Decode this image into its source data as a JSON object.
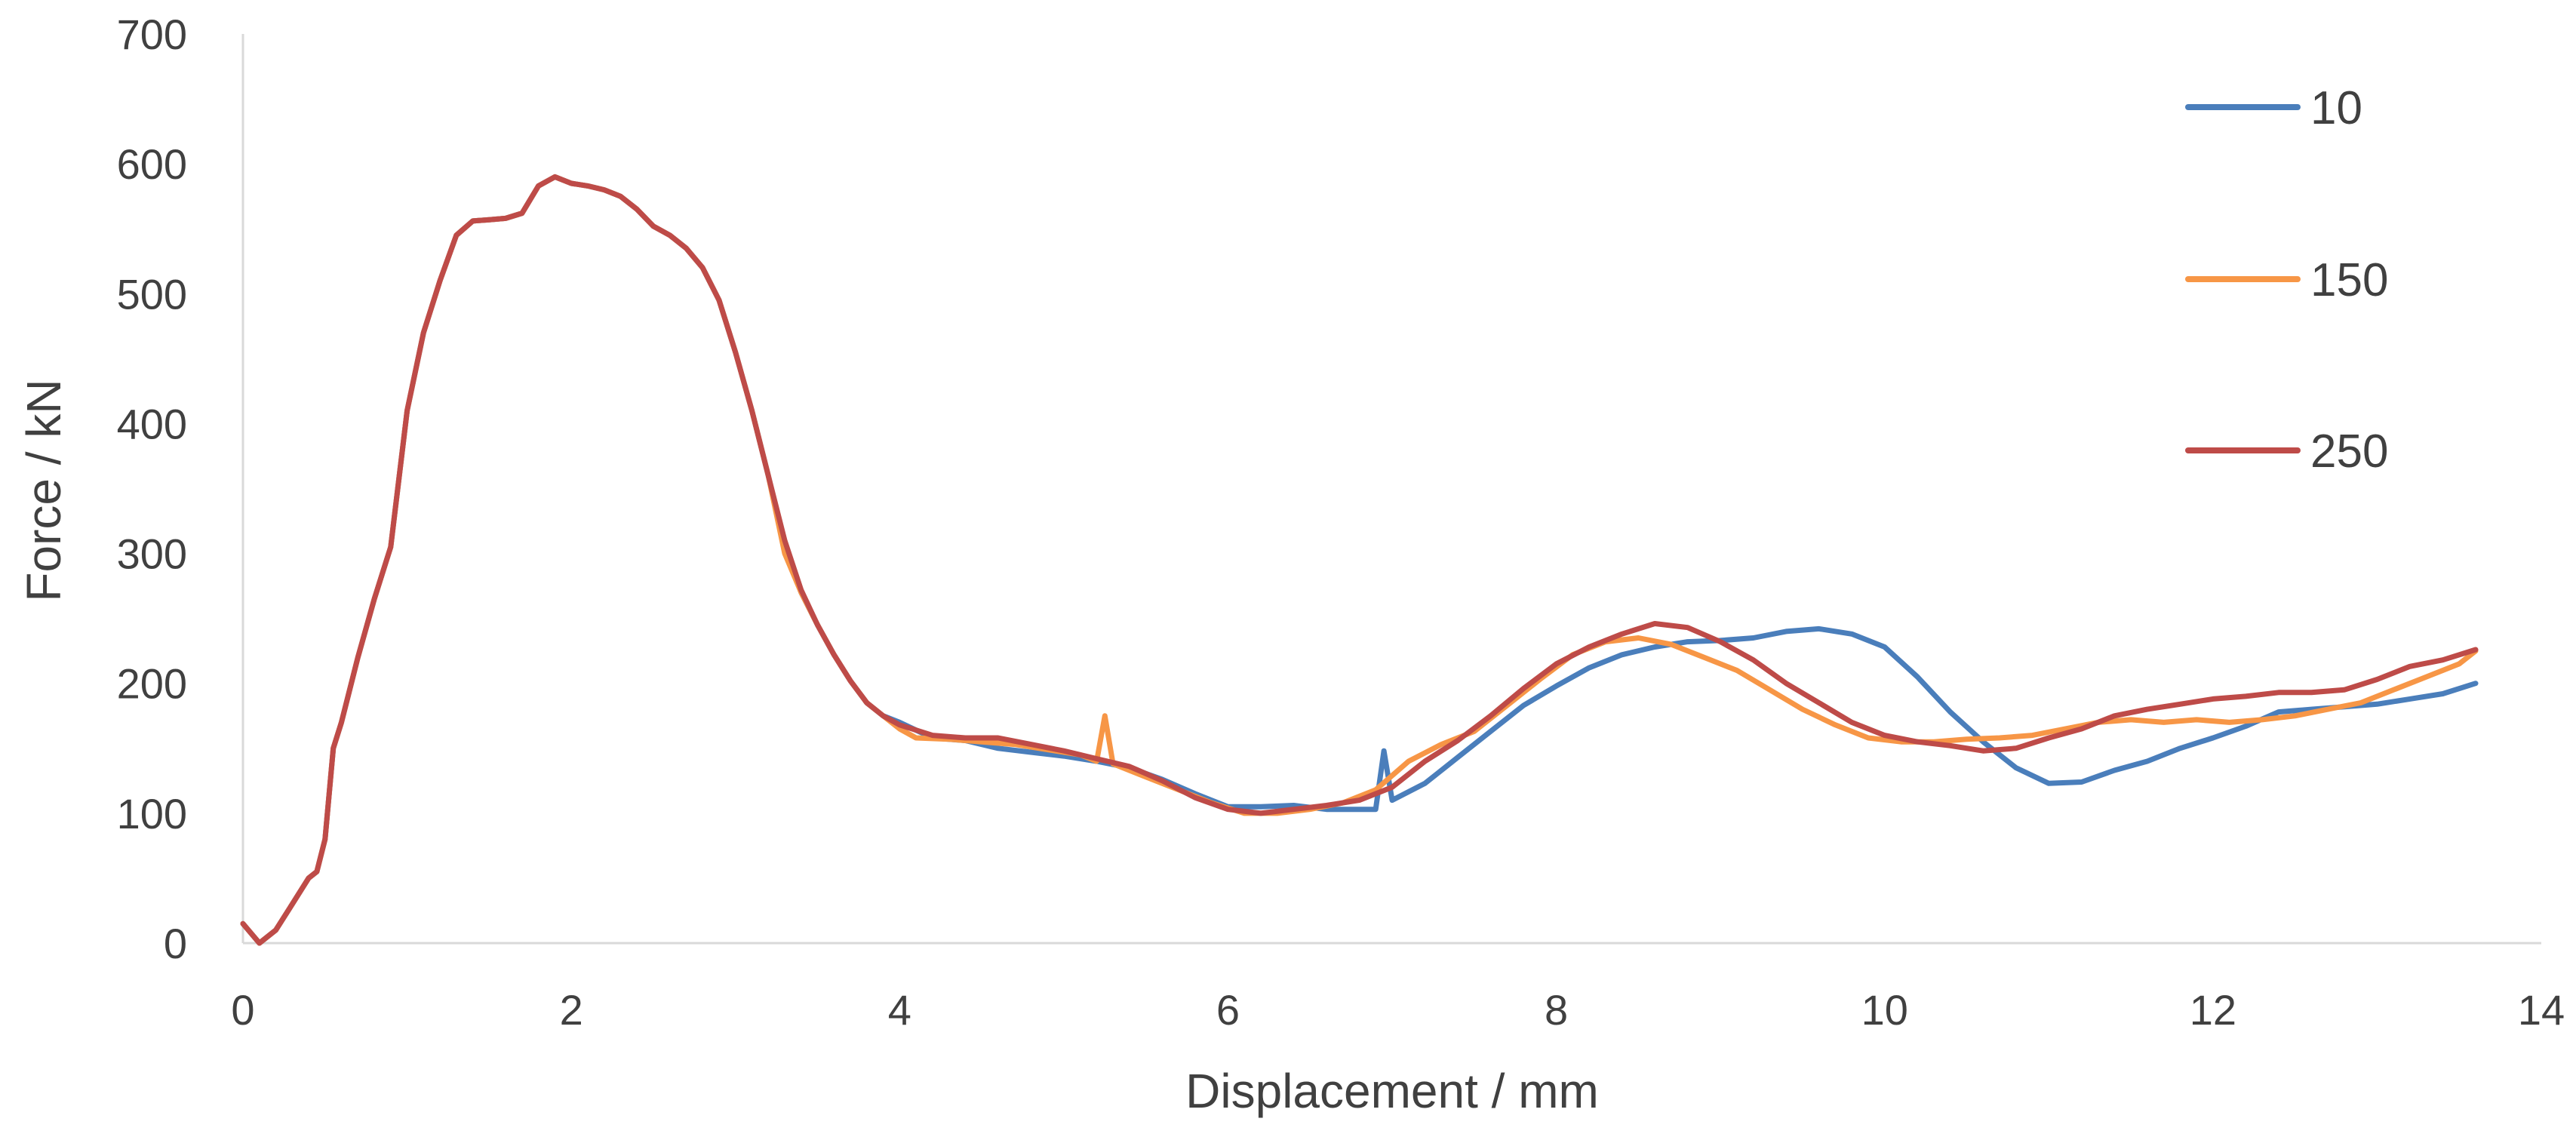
{
  "chart_data": {
    "type": "line",
    "title": "",
    "xlabel": "Displacement / mm",
    "ylabel": "Force / kN",
    "xlim": [
      0,
      14
    ],
    "ylim": [
      0,
      700
    ],
    "x_ticks": [
      "0",
      "2",
      "4",
      "6",
      "8",
      "10",
      "12",
      "14"
    ],
    "y_ticks": [
      "0",
      "100",
      "200",
      "300",
      "400",
      "500",
      "600",
      "700"
    ],
    "grid": false,
    "legend_position": "top-right",
    "series": [
      {
        "name": "10",
        "color": "#4a7ebb",
        "points": [
          [
            0,
            15
          ],
          [
            0.1,
            0
          ],
          [
            0.2,
            10
          ],
          [
            0.3,
            30
          ],
          [
            0.4,
            50
          ],
          [
            0.45,
            55
          ],
          [
            0.5,
            80
          ],
          [
            0.55,
            150
          ],
          [
            0.6,
            170
          ],
          [
            0.7,
            220
          ],
          [
            0.8,
            265
          ],
          [
            0.9,
            305
          ],
          [
            1.0,
            410
          ],
          [
            1.1,
            470
          ],
          [
            1.2,
            510
          ],
          [
            1.3,
            545
          ],
          [
            1.4,
            556
          ],
          [
            1.5,
            557
          ],
          [
            1.6,
            558
          ],
          [
            1.7,
            562
          ],
          [
            1.8,
            583
          ],
          [
            1.9,
            590
          ],
          [
            2.0,
            585
          ],
          [
            2.1,
            583
          ],
          [
            2.2,
            580
          ],
          [
            2.3,
            575
          ],
          [
            2.4,
            565
          ],
          [
            2.5,
            552
          ],
          [
            2.6,
            545
          ],
          [
            2.7,
            535
          ],
          [
            2.8,
            520
          ],
          [
            2.9,
            495
          ],
          [
            3.0,
            455
          ],
          [
            3.1,
            410
          ],
          [
            3.2,
            360
          ],
          [
            3.3,
            305
          ],
          [
            3.4,
            270
          ],
          [
            3.5,
            245
          ],
          [
            3.6,
            222
          ],
          [
            3.7,
            202
          ],
          [
            3.8,
            185
          ],
          [
            3.9,
            175
          ],
          [
            4.0,
            170
          ],
          [
            4.1,
            164
          ],
          [
            4.2,
            158
          ],
          [
            4.4,
            156
          ],
          [
            4.6,
            150
          ],
          [
            4.8,
            147
          ],
          [
            5.0,
            144
          ],
          [
            5.2,
            140
          ],
          [
            5.4,
            135
          ],
          [
            5.6,
            126
          ],
          [
            5.8,
            115
          ],
          [
            6.0,
            105
          ],
          [
            6.2,
            105
          ],
          [
            6.4,
            106
          ],
          [
            6.6,
            103
          ],
          [
            6.8,
            103
          ],
          [
            6.9,
            103
          ],
          [
            6.95,
            148
          ],
          [
            7.0,
            110
          ],
          [
            7.2,
            123
          ],
          [
            7.4,
            143
          ],
          [
            7.6,
            163
          ],
          [
            7.8,
            183
          ],
          [
            8.0,
            198
          ],
          [
            8.2,
            212
          ],
          [
            8.4,
            222
          ],
          [
            8.6,
            228
          ],
          [
            8.8,
            232
          ],
          [
            9.0,
            233
          ],
          [
            9.2,
            235
          ],
          [
            9.4,
            240
          ],
          [
            9.6,
            242
          ],
          [
            9.8,
            238
          ],
          [
            10.0,
            228
          ],
          [
            10.2,
            205
          ],
          [
            10.4,
            178
          ],
          [
            10.6,
            155
          ],
          [
            10.8,
            135
          ],
          [
            11.0,
            123
          ],
          [
            11.2,
            124
          ],
          [
            11.4,
            133
          ],
          [
            11.6,
            140
          ],
          [
            11.8,
            150
          ],
          [
            12.0,
            158
          ],
          [
            12.2,
            167
          ],
          [
            12.4,
            178
          ],
          [
            12.6,
            180
          ],
          [
            12.8,
            182
          ],
          [
            13.0,
            184
          ],
          [
            13.2,
            188
          ],
          [
            13.4,
            192
          ],
          [
            13.6,
            200
          ]
        ]
      },
      {
        "name": "150",
        "color": "#f79646",
        "points": [
          [
            0,
            15
          ],
          [
            0.1,
            0
          ],
          [
            0.2,
            10
          ],
          [
            0.3,
            30
          ],
          [
            0.4,
            50
          ],
          [
            0.45,
            55
          ],
          [
            0.5,
            80
          ],
          [
            0.55,
            150
          ],
          [
            0.6,
            170
          ],
          [
            0.7,
            220
          ],
          [
            0.8,
            265
          ],
          [
            0.9,
            305
          ],
          [
            1.0,
            410
          ],
          [
            1.1,
            470
          ],
          [
            1.2,
            510
          ],
          [
            1.3,
            545
          ],
          [
            1.4,
            556
          ],
          [
            1.5,
            557
          ],
          [
            1.6,
            558
          ],
          [
            1.7,
            562
          ],
          [
            1.8,
            583
          ],
          [
            1.9,
            590
          ],
          [
            2.0,
            585
          ],
          [
            2.1,
            583
          ],
          [
            2.2,
            580
          ],
          [
            2.3,
            575
          ],
          [
            2.4,
            565
          ],
          [
            2.5,
            552
          ],
          [
            2.6,
            545
          ],
          [
            2.7,
            535
          ],
          [
            2.8,
            520
          ],
          [
            2.9,
            495
          ],
          [
            3.0,
            455
          ],
          [
            3.1,
            410
          ],
          [
            3.2,
            360
          ],
          [
            3.3,
            300
          ],
          [
            3.4,
            270
          ],
          [
            3.5,
            245
          ],
          [
            3.6,
            222
          ],
          [
            3.7,
            202
          ],
          [
            3.8,
            185
          ],
          [
            3.9,
            175
          ],
          [
            4.0,
            165
          ],
          [
            4.1,
            158
          ],
          [
            4.3,
            157
          ],
          [
            4.5,
            155
          ],
          [
            4.7,
            153
          ],
          [
            4.9,
            149
          ],
          [
            5.1,
            145
          ],
          [
            5.2,
            140
          ],
          [
            5.25,
            175
          ],
          [
            5.3,
            138
          ],
          [
            5.5,
            128
          ],
          [
            5.7,
            118
          ],
          [
            5.9,
            108
          ],
          [
            6.1,
            100
          ],
          [
            6.3,
            100
          ],
          [
            6.5,
            103
          ],
          [
            6.7,
            108
          ],
          [
            6.9,
            118
          ],
          [
            7.1,
            140
          ],
          [
            7.3,
            153
          ],
          [
            7.5,
            163
          ],
          [
            7.7,
            183
          ],
          [
            7.9,
            203
          ],
          [
            8.1,
            222
          ],
          [
            8.3,
            232
          ],
          [
            8.5,
            235
          ],
          [
            8.7,
            230
          ],
          [
            8.9,
            220
          ],
          [
            9.1,
            210
          ],
          [
            9.3,
            195
          ],
          [
            9.5,
            180
          ],
          [
            9.7,
            168
          ],
          [
            9.9,
            158
          ],
          [
            10.1,
            155
          ],
          [
            10.3,
            155
          ],
          [
            10.5,
            157
          ],
          [
            10.7,
            158
          ],
          [
            10.9,
            160
          ],
          [
            11.1,
            165
          ],
          [
            11.3,
            170
          ],
          [
            11.5,
            172
          ],
          [
            11.7,
            170
          ],
          [
            11.9,
            172
          ],
          [
            12.1,
            170
          ],
          [
            12.3,
            172
          ],
          [
            12.5,
            175
          ],
          [
            12.7,
            180
          ],
          [
            12.9,
            185
          ],
          [
            13.1,
            195
          ],
          [
            13.3,
            205
          ],
          [
            13.5,
            215
          ],
          [
            13.6,
            225
          ]
        ]
      },
      {
        "name": "250",
        "color": "#be4b48",
        "points": [
          [
            0,
            15
          ],
          [
            0.1,
            0
          ],
          [
            0.2,
            10
          ],
          [
            0.3,
            30
          ],
          [
            0.4,
            50
          ],
          [
            0.45,
            55
          ],
          [
            0.5,
            80
          ],
          [
            0.55,
            150
          ],
          [
            0.6,
            170
          ],
          [
            0.7,
            220
          ],
          [
            0.8,
            265
          ],
          [
            0.9,
            305
          ],
          [
            1.0,
            410
          ],
          [
            1.1,
            470
          ],
          [
            1.2,
            510
          ],
          [
            1.3,
            545
          ],
          [
            1.4,
            556
          ],
          [
            1.5,
            557
          ],
          [
            1.6,
            558
          ],
          [
            1.7,
            562
          ],
          [
            1.8,
            583
          ],
          [
            1.9,
            590
          ],
          [
            2.0,
            585
          ],
          [
            2.1,
            583
          ],
          [
            2.2,
            580
          ],
          [
            2.3,
            575
          ],
          [
            2.4,
            565
          ],
          [
            2.5,
            552
          ],
          [
            2.6,
            545
          ],
          [
            2.7,
            535
          ],
          [
            2.8,
            520
          ],
          [
            2.9,
            495
          ],
          [
            3.0,
            455
          ],
          [
            3.1,
            410
          ],
          [
            3.2,
            360
          ],
          [
            3.3,
            310
          ],
          [
            3.4,
            272
          ],
          [
            3.5,
            245
          ],
          [
            3.6,
            222
          ],
          [
            3.7,
            202
          ],
          [
            3.8,
            185
          ],
          [
            3.9,
            175
          ],
          [
            4.0,
            168
          ],
          [
            4.2,
            160
          ],
          [
            4.4,
            158
          ],
          [
            4.6,
            158
          ],
          [
            4.8,
            153
          ],
          [
            5.0,
            148
          ],
          [
            5.2,
            142
          ],
          [
            5.4,
            136
          ],
          [
            5.6,
            125
          ],
          [
            5.8,
            112
          ],
          [
            6.0,
            103
          ],
          [
            6.2,
            100
          ],
          [
            6.4,
            103
          ],
          [
            6.6,
            106
          ],
          [
            6.8,
            110
          ],
          [
            7.0,
            120
          ],
          [
            7.2,
            140
          ],
          [
            7.4,
            156
          ],
          [
            7.6,
            175
          ],
          [
            7.8,
            196
          ],
          [
            8.0,
            215
          ],
          [
            8.2,
            228
          ],
          [
            8.4,
            238
          ],
          [
            8.6,
            246
          ],
          [
            8.8,
            243
          ],
          [
            9.0,
            232
          ],
          [
            9.2,
            218
          ],
          [
            9.4,
            200
          ],
          [
            9.6,
            185
          ],
          [
            9.8,
            170
          ],
          [
            10.0,
            160
          ],
          [
            10.2,
            155
          ],
          [
            10.4,
            152
          ],
          [
            10.6,
            148
          ],
          [
            10.8,
            150
          ],
          [
            11.0,
            158
          ],
          [
            11.2,
            165
          ],
          [
            11.4,
            175
          ],
          [
            11.6,
            180
          ],
          [
            11.8,
            184
          ],
          [
            12.0,
            188
          ],
          [
            12.2,
            190
          ],
          [
            12.4,
            193
          ],
          [
            12.6,
            193
          ],
          [
            12.8,
            195
          ],
          [
            13.0,
            203
          ],
          [
            13.2,
            213
          ],
          [
            13.4,
            218
          ],
          [
            13.6,
            226
          ]
        ]
      }
    ]
  }
}
